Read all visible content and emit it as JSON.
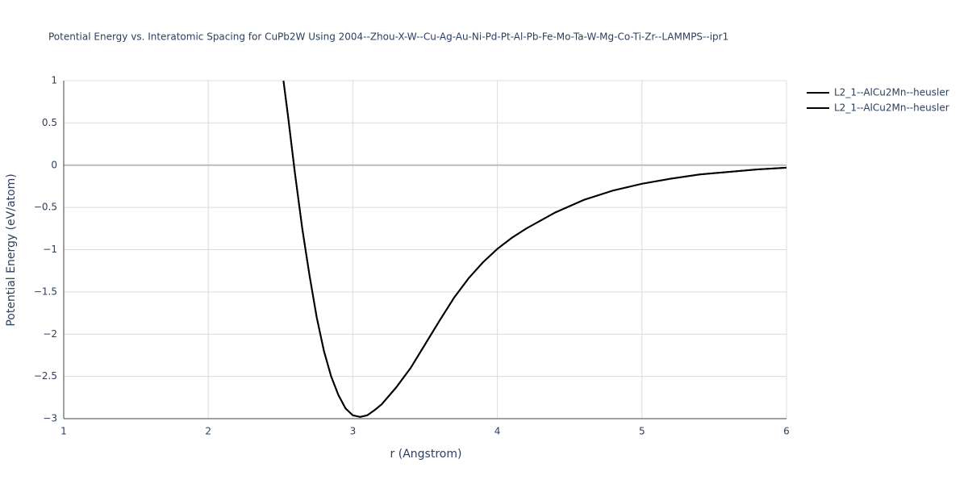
{
  "chart_data": {
    "type": "line",
    "title": "Potential Energy vs. Interatomic Spacing for CuPb2W Using 2004--Zhou-X-W--Cu-Ag-Au-Ni-Pd-Pt-Al-Pb-Fe-Mo-Ta-W-Mg-Co-Ti-Zr--LAMMPS--ipr1",
    "x_label": "r (Angstrom)",
    "y_label": "Potential Energy (eV/atom)",
    "x": [
      2.52,
      2.55,
      2.6,
      2.65,
      2.7,
      2.75,
      2.8,
      2.85,
      2.9,
      2.95,
      3.0,
      3.05,
      3.1,
      3.15,
      3.2,
      3.3,
      3.4,
      3.5,
      3.6,
      3.7,
      3.8,
      3.9,
      4.0,
      4.1,
      4.2,
      4.4,
      4.6,
      4.8,
      5.0,
      5.2,
      5.4,
      5.6,
      5.8,
      6.0
    ],
    "series": [
      {
        "name": "L2_1--AlCu2Mn--heusler",
        "color": "#000000",
        "values": [
          1.0,
          0.6,
          -0.1,
          -0.75,
          -1.3,
          -1.8,
          -2.2,
          -2.5,
          -2.72,
          -2.88,
          -2.96,
          -2.98,
          -2.96,
          -2.9,
          -2.83,
          -2.63,
          -2.4,
          -2.12,
          -1.84,
          -1.57,
          -1.34,
          -1.15,
          -0.99,
          -0.86,
          -0.75,
          -0.56,
          -0.41,
          -0.3,
          -0.22,
          -0.16,
          -0.11,
          -0.08,
          -0.05,
          -0.03
        ]
      },
      {
        "name": "L2_1--AlCu2Mn--heusler",
        "color": "#000000",
        "values": [
          1.0,
          0.6,
          -0.1,
          -0.75,
          -1.3,
          -1.8,
          -2.2,
          -2.5,
          -2.72,
          -2.88,
          -2.96,
          -2.98,
          -2.96,
          -2.9,
          -2.83,
          -2.63,
          -2.4,
          -2.12,
          -1.84,
          -1.57,
          -1.34,
          -1.15,
          -0.99,
          -0.86,
          -0.75,
          -0.56,
          -0.41,
          -0.3,
          -0.22,
          -0.16,
          -0.11,
          -0.08,
          -0.05,
          -0.03
        ]
      }
    ],
    "xlim": [
      1,
      6
    ],
    "xticks": [
      1,
      2,
      3,
      4,
      5,
      6
    ],
    "ylim": [
      -3,
      1
    ],
    "yticks": [
      {
        "value": -3,
        "label": "−3"
      },
      {
        "value": -2.5,
        "label": "−2.5"
      },
      {
        "value": -2,
        "label": "−2"
      },
      {
        "value": -1.5,
        "label": "−1.5"
      },
      {
        "value": -1,
        "label": "−1"
      },
      {
        "value": -0.5,
        "label": "−0.5"
      },
      0,
      0.5,
      1
    ],
    "grid": true,
    "legend": "outside-right"
  }
}
